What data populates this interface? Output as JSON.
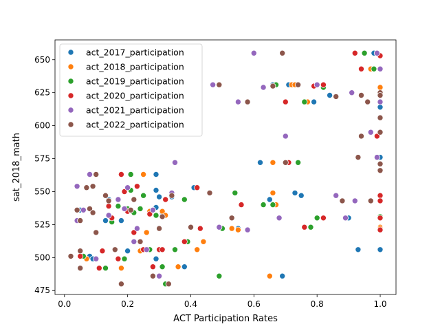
{
  "chart_data": {
    "type": "scatter",
    "xlabel": "ACT Participation Rates",
    "ylabel": "sat_2018_math",
    "xlim": [
      -0.03,
      1.05
    ],
    "ylim": [
      472,
      665
    ],
    "xticks": [
      0.0,
      0.2,
      0.4,
      0.6,
      0.8,
      1.0
    ],
    "xtick_labels": [
      "0.0",
      "0.2",
      "0.4",
      "0.6",
      "0.8",
      "1.0"
    ],
    "yticks": [
      475,
      500,
      525,
      550,
      575,
      600,
      625,
      650
    ],
    "ytick_labels": [
      "475",
      "500",
      "525",
      "550",
      "575",
      "600",
      "625",
      "650"
    ],
    "grid": false,
    "legend_position": "upper-left",
    "series": [
      {
        "name": "act_2017_participation",
        "color": "#1f77b4",
        "points": [
          [
            0.05,
            536
          ],
          [
            0.08,
            501
          ],
          [
            0.09,
            499
          ],
          [
            0.13,
            528
          ],
          [
            0.14,
            544
          ],
          [
            0.18,
            528
          ],
          [
            0.2,
            505
          ],
          [
            0.23,
            554
          ],
          [
            0.29,
            538
          ],
          [
            0.29,
            551
          ],
          [
            0.3,
            546
          ],
          [
            0.31,
            534
          ],
          [
            0.29,
            499
          ],
          [
            0.34,
            546
          ],
          [
            0.36,
            493
          ],
          [
            0.38,
            493
          ],
          [
            0.41,
            553
          ],
          [
            0.29,
            563
          ],
          [
            0.55,
            522
          ],
          [
            0.62,
            572
          ],
          [
            0.65,
            544
          ],
          [
            0.66,
            631
          ],
          [
            0.66,
            540
          ],
          [
            0.69,
            486
          ],
          [
            0.71,
            631
          ],
          [
            0.73,
            549
          ],
          [
            0.75,
            547
          ],
          [
            0.79,
            618
          ],
          [
            0.84,
            623
          ],
          [
            0.9,
            530
          ],
          [
            0.93,
            506
          ],
          [
            1.0,
            506
          ],
          [
            0.98,
            655
          ],
          [
            1.0,
            614
          ],
          [
            1.0,
            576
          ]
        ]
      },
      {
        "name": "act_2018_participation",
        "color": "#ff7f0e",
        "points": [
          [
            0.07,
            499
          ],
          [
            0.15,
            528
          ],
          [
            0.18,
            492
          ],
          [
            0.19,
            499
          ],
          [
            0.24,
            505
          ],
          [
            0.25,
            563
          ],
          [
            0.26,
            519
          ],
          [
            0.27,
            535
          ],
          [
            0.28,
            536
          ],
          [
            0.31,
            535
          ],
          [
            0.32,
            532
          ],
          [
            0.36,
            493
          ],
          [
            0.42,
            506
          ],
          [
            0.44,
            512
          ],
          [
            0.53,
            522
          ],
          [
            0.55,
            521
          ],
          [
            0.65,
            486
          ],
          [
            0.66,
            572
          ],
          [
            0.66,
            549
          ],
          [
            0.67,
            540
          ],
          [
            0.72,
            631
          ],
          [
            0.73,
            631
          ],
          [
            0.77,
            618
          ],
          [
            0.89,
            530
          ],
          [
            0.97,
            643
          ],
          [
            0.99,
            655
          ],
          [
            1.0,
            629
          ],
          [
            1.0,
            523
          ],
          [
            1.0,
            522
          ]
        ]
      },
      {
        "name": "act_2019_participation",
        "color": "#2ca02c",
        "points": [
          [
            0.06,
            501
          ],
          [
            0.12,
            505
          ],
          [
            0.13,
            492
          ],
          [
            0.15,
            527
          ],
          [
            0.17,
            539
          ],
          [
            0.19,
            499
          ],
          [
            0.2,
            537
          ],
          [
            0.21,
            551
          ],
          [
            0.21,
            563
          ],
          [
            0.22,
            534
          ],
          [
            0.24,
            537
          ],
          [
            0.25,
            547
          ],
          [
            0.27,
            506
          ],
          [
            0.29,
            532
          ],
          [
            0.31,
            493
          ],
          [
            0.32,
            480
          ],
          [
            0.35,
            506
          ],
          [
            0.38,
            544
          ],
          [
            0.39,
            512
          ],
          [
            0.49,
            486
          ],
          [
            0.5,
            522
          ],
          [
            0.54,
            549
          ],
          [
            0.63,
            540
          ],
          [
            0.66,
            540
          ],
          [
            0.67,
            631
          ],
          [
            0.74,
            572
          ],
          [
            0.76,
            618
          ],
          [
            0.78,
            523
          ],
          [
            0.8,
            530
          ],
          [
            0.82,
            629
          ],
          [
            0.95,
            655
          ],
          [
            0.98,
            643
          ],
          [
            1.0,
            531
          ]
        ]
      },
      {
        "name": "act_2020_participation",
        "color": "#d62728",
        "points": [
          [
            0.05,
            501
          ],
          [
            0.11,
            492
          ],
          [
            0.12,
            505
          ],
          [
            0.14,
            539
          ],
          [
            0.15,
            530
          ],
          [
            0.17,
            499
          ],
          [
            0.18,
            563
          ],
          [
            0.19,
            550
          ],
          [
            0.2,
            535
          ],
          [
            0.21,
            536
          ],
          [
            0.22,
            519
          ],
          [
            0.23,
            554
          ],
          [
            0.25,
            506
          ],
          [
            0.27,
            533
          ],
          [
            0.28,
            493
          ],
          [
            0.3,
            506
          ],
          [
            0.31,
            506
          ],
          [
            0.32,
            544
          ],
          [
            0.33,
            480
          ],
          [
            0.38,
            512
          ],
          [
            0.42,
            553
          ],
          [
            0.43,
            522
          ],
          [
            0.56,
            540
          ],
          [
            0.71,
            572
          ],
          [
            0.7,
            618
          ],
          [
            0.76,
            523
          ],
          [
            0.79,
            630
          ],
          [
            0.82,
            530
          ],
          [
            0.82,
            631
          ],
          [
            0.92,
            655
          ],
          [
            0.94,
            643
          ],
          [
            0.99,
            592
          ],
          [
            1.0,
            653
          ],
          [
            1.0,
            624
          ],
          [
            1.0,
            547
          ],
          [
            1.0,
            543
          ],
          [
            1.0,
            530
          ],
          [
            1.0,
            521
          ]
        ]
      },
      {
        "name": "act_2021_participation",
        "color": "#9467bd",
        "points": [
          [
            0.04,
            528
          ],
          [
            0.04,
            554
          ],
          [
            0.06,
            536
          ],
          [
            0.08,
            563
          ],
          [
            0.1,
            499
          ],
          [
            0.14,
            532
          ],
          [
            0.16,
            506
          ],
          [
            0.17,
            544
          ],
          [
            0.18,
            480
          ],
          [
            0.19,
            537
          ],
          [
            0.2,
            553
          ],
          [
            0.22,
            512
          ],
          [
            0.23,
            522
          ],
          [
            0.26,
            506
          ],
          [
            0.28,
            536
          ],
          [
            0.3,
            486
          ],
          [
            0.34,
            549
          ],
          [
            0.35,
            572
          ],
          [
            0.47,
            631
          ],
          [
            0.49,
            523
          ],
          [
            0.55,
            618
          ],
          [
            0.58,
            521
          ],
          [
            0.6,
            655
          ],
          [
            0.63,
            629
          ],
          [
            0.68,
            530
          ],
          [
            0.7,
            592
          ],
          [
            0.8,
            631
          ],
          [
            0.86,
            547
          ],
          [
            0.89,
            530
          ],
          [
            0.91,
            625
          ],
          [
            0.92,
            543
          ],
          [
            0.97,
            595
          ],
          [
            0.99,
            576
          ],
          [
            1.0,
            643
          ],
          [
            0.99,
            655
          ],
          [
            1.0,
            618
          ]
        ]
      },
      {
        "name": "act_2022_participation",
        "color": "#8c564b",
        "points": [
          [
            0.02,
            501
          ],
          [
            0.04,
            536
          ],
          [
            0.05,
            528
          ],
          [
            0.05,
            505
          ],
          [
            0.05,
            492
          ],
          [
            0.07,
            553
          ],
          [
            0.08,
            537
          ],
          [
            0.09,
            554
          ],
          [
            0.09,
            534
          ],
          [
            0.1,
            563
          ],
          [
            0.1,
            519
          ],
          [
            0.13,
            547
          ],
          [
            0.14,
            543
          ],
          [
            0.16,
            506
          ],
          [
            0.18,
            480
          ],
          [
            0.21,
            536
          ],
          [
            0.22,
            544
          ],
          [
            0.24,
            512
          ],
          [
            0.28,
            486
          ],
          [
            0.3,
            522
          ],
          [
            0.31,
            531
          ],
          [
            0.33,
            480
          ],
          [
            0.34,
            547
          ],
          [
            0.4,
            523
          ],
          [
            0.46,
            549
          ],
          [
            0.49,
            631
          ],
          [
            0.53,
            530
          ],
          [
            0.58,
            618
          ],
          [
            0.66,
            630
          ],
          [
            0.69,
            655
          ],
          [
            0.7,
            572
          ],
          [
            0.74,
            631
          ],
          [
            0.86,
            622
          ],
          [
            0.88,
            543
          ],
          [
            0.93,
            576
          ],
          [
            0.94,
            623
          ],
          [
            0.94,
            592
          ],
          [
            0.96,
            618
          ],
          [
            0.97,
            543
          ],
          [
            1.0,
            625
          ],
          [
            1.0,
            623
          ],
          [
            1.0,
            606
          ],
          [
            1.0,
            595
          ],
          [
            1.0,
            571
          ],
          [
            1.0,
            566
          ]
        ]
      }
    ]
  }
}
